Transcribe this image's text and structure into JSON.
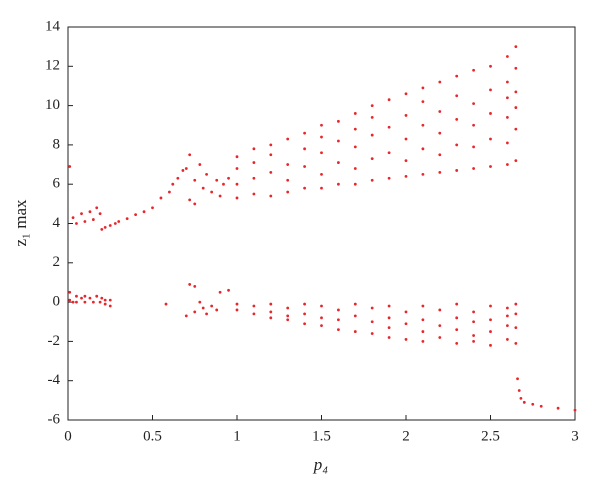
{
  "chart_data": {
    "type": "scatter",
    "x_label": "p₄",
    "y_label": "z₁ max",
    "color": "#e8262b",
    "xlim": [
      0,
      3
    ],
    "ylim": [
      -6,
      14
    ],
    "xticks": [
      0,
      0.5,
      1,
      1.5,
      2,
      2.5,
      3
    ],
    "yticks": [
      -6,
      -4,
      -2,
      0,
      2,
      4,
      6,
      8,
      10,
      12,
      14
    ],
    "x": [
      0.01,
      0.01,
      0.01,
      0.03,
      0.03,
      0.05,
      0.05,
      0.05,
      0.08,
      0.08,
      0.1,
      0.1,
      0.1,
      0.13,
      0.13,
      0.15,
      0.15,
      0.17,
      0.17,
      0.19,
      0.19,
      0.2,
      0.2,
      0.22,
      0.22,
      0.22,
      0.25,
      0.25,
      0.25,
      0.28,
      0.3,
      0.35,
      0.4,
      0.45,
      0.5,
      0.55,
      0.58,
      0.6,
      0.62,
      0.65,
      0.68,
      0.7,
      0.72,
      0.72,
      0.75,
      0.75,
      0.78,
      0.8,
      0.82,
      0.85,
      0.88,
      0.9,
      0.92,
      0.95,
      0.7,
      0.72,
      0.75,
      0.75,
      0.78,
      0.8,
      0.82,
      0.85,
      0.88,
      0.9,
      0.95,
      1,
      1,
      1,
      1,
      1,
      1,
      1.1,
      1.1,
      1.1,
      1.1,
      1.1,
      1.1,
      1.2,
      1.2,
      1.2,
      1.2,
      1.2,
      1.2,
      1.2,
      1.3,
      1.3,
      1.3,
      1.3,
      1.3,
      1.3,
      1.3,
      1.4,
      1.4,
      1.4,
      1.4,
      1.4,
      1.4,
      1.4,
      1.5,
      1.5,
      1.5,
      1.5,
      1.5,
      1.5,
      1.5,
      1.5,
      1.6,
      1.6,
      1.6,
      1.6,
      1.6,
      1.6,
      1.6,
      1.7,
      1.7,
      1.7,
      1.7,
      1.7,
      1.7,
      1.7,
      1.7,
      1.8,
      1.8,
      1.8,
      1.8,
      1.8,
      1.8,
      1.8,
      1.8,
      1.9,
      1.9,
      1.9,
      1.9,
      1.9,
      1.9,
      1.9,
      1.9,
      2,
      2,
      2,
      2,
      2,
      2,
      2,
      2,
      2.1,
      2.1,
      2.1,
      2.1,
      2.1,
      2.1,
      2.1,
      2.1,
      2.1,
      2.2,
      2.2,
      2.2,
      2.2,
      2.2,
      2.2,
      2.2,
      2.2,
      2.3,
      2.3,
      2.3,
      2.3,
      2.3,
      2.3,
      2.3,
      2.3,
      2.3,
      2.4,
      2.4,
      2.4,
      2.4,
      2.4,
      2.4,
      2.4,
      2.4,
      2.4,
      2.5,
      2.5,
      2.5,
      2.5,
      2.5,
      2.5,
      2.5,
      2.5,
      2.5,
      2.6,
      2.6,
      2.6,
      2.6,
      2.6,
      2.6,
      2.6,
      2.6,
      2.6,
      2.6,
      2.65,
      2.65,
      2.65,
      2.65,
      2.65,
      2.65,
      2.65,
      2.65,
      2.65,
      2.65,
      2.66,
      2.67,
      2.68,
      2.7,
      2.75,
      2.8,
      2.9,
      3
    ],
    "values": [
      0.1,
      0.5,
      6.9,
      0,
      4.3,
      0.3,
      0,
      4,
      0.2,
      4.5,
      0,
      0.3,
      4.1,
      0.2,
      4.6,
      0,
      4.2,
      0.3,
      4.8,
      0,
      4.5,
      3.7,
      0.2,
      3.8,
      0.1,
      -0.1,
      3.9,
      0.1,
      -0.2,
      4,
      4.1,
      4.25,
      4.45,
      4.6,
      4.8,
      5.3,
      -0.1,
      5.6,
      6,
      6.3,
      6.7,
      6.8,
      7.5,
      5.2,
      5,
      6.2,
      7,
      5.8,
      6.5,
      5.6,
      6.2,
      5.4,
      6,
      6.3,
      -0.7,
      0.9,
      0.8,
      -0.5,
      0,
      -0.3,
      -0.6,
      -0.2,
      -0.4,
      0.5,
      0.6,
      5.3,
      6,
      6.8,
      7.4,
      -0.1,
      -0.4,
      5.5,
      6.3,
      7.1,
      7.8,
      -0.2,
      -0.6,
      5.4,
      6.6,
      7.5,
      8,
      -0.1,
      -0.5,
      -0.8,
      5.6,
      6.2,
      7,
      8.3,
      -0.3,
      -0.7,
      -0.9,
      5.8,
      6.9,
      7.8,
      8.6,
      -0.1,
      -0.6,
      -1.1,
      5.8,
      6.5,
      7.6,
      8.4,
      9,
      -0.2,
      -0.8,
      -1.2,
      6,
      7.1,
      8.2,
      9.2,
      -0.4,
      -0.9,
      -1.4,
      6,
      6.8,
      7.9,
      8.8,
      9.6,
      -0.1,
      -0.7,
      -1.5,
      6.2,
      7.3,
      8.5,
      9.4,
      10,
      -0.3,
      -1,
      -1.6,
      6.3,
      7.6,
      8.9,
      10.3,
      -0.2,
      -0.8,
      -1.3,
      -1.8,
      6.4,
      7.2,
      8.3,
      9.5,
      10.6,
      -0.5,
      -1.1,
      -1.9,
      6.5,
      7.8,
      9,
      10.2,
      10.9,
      -0.2,
      -0.9,
      -1.5,
      -2,
      6.6,
      7.5,
      8.6,
      9.7,
      11.2,
      -0.4,
      -1.2,
      -1.8,
      6.7,
      8,
      9.3,
      10.5,
      11.5,
      -0.1,
      -0.8,
      -1.4,
      -2.1,
      6.8,
      7.9,
      9,
      10.1,
      11.8,
      -0.5,
      -1,
      -1.7,
      -2,
      6.9,
      8.3,
      9.6,
      10.8,
      12,
      -0.2,
      -0.9,
      -1.5,
      -2.2,
      7,
      8.1,
      9.4,
      10.4,
      11.2,
      12.5,
      -0.3,
      -0.7,
      -1.2,
      -1.9,
      7.2,
      8.8,
      9.9,
      10.7,
      11.9,
      13,
      -0.1,
      -0.6,
      -1.3,
      -2.1,
      -3.9,
      -4.5,
      -4.9,
      -5.1,
      -5.2,
      -5.3,
      -5.4,
      -5.5
    ]
  }
}
